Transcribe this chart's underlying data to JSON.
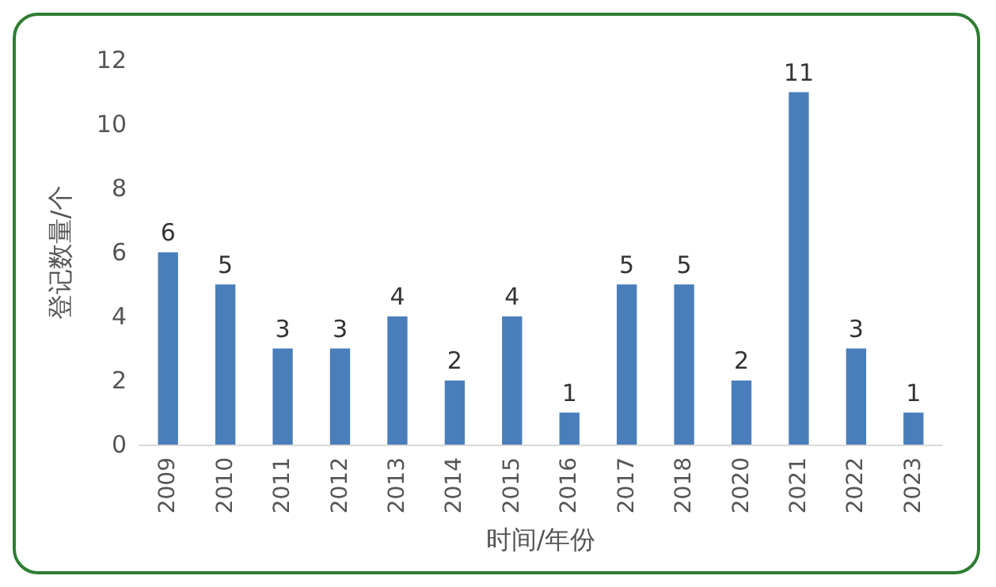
{
  "chart_data": {
    "type": "bar",
    "xlabel": "时间/年份",
    "ylabel": "登记数量/个",
    "categories": [
      "2009",
      "2010",
      "2011",
      "2012",
      "2013",
      "2014",
      "2015",
      "2016",
      "2017",
      "2018",
      "2020",
      "2021",
      "2022",
      "2023"
    ],
    "values": [
      6,
      5,
      3,
      3,
      4,
      2,
      4,
      1,
      5,
      5,
      2,
      11,
      3,
      1
    ],
    "color": "#4a7ebb",
    "ylim": [
      0,
      12
    ],
    "yticks": [
      0,
      2,
      4,
      6,
      8,
      10,
      12
    ],
    "grid": false,
    "data_labels": true
  }
}
